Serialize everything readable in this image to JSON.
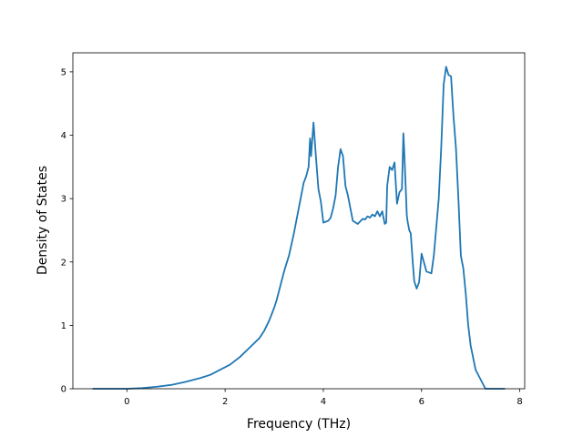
{
  "chart_data": {
    "type": "line",
    "title": "",
    "xlabel": "Frequency (THz)",
    "ylabel": "Density of States",
    "xlim": [
      -1.1,
      8.1
    ],
    "ylim": [
      0,
      5.3
    ],
    "grid": false,
    "x_ticks": [
      0,
      2,
      4,
      6,
      8
    ],
    "y_ticks": [
      0,
      1,
      2,
      3,
      4,
      5
    ],
    "x_tick_labels": [
      "0",
      "2",
      "4",
      "6",
      "8"
    ],
    "y_tick_labels": [
      "0",
      "1",
      "2",
      "3",
      "4",
      "5"
    ],
    "line_color": "#1f77b4",
    "series": [
      {
        "x": [
          -0.7,
          -0.4,
          0,
          0.3,
          0.6,
          0.9,
          1.2,
          1.5,
          1.7,
          1.9,
          2.1,
          2.3,
          2.5,
          2.7,
          2.8,
          2.9,
          3.0,
          3.05,
          3.1,
          3.2,
          3.3,
          3.4,
          3.5,
          3.6,
          3.65,
          3.7,
          3.73,
          3.75,
          3.8,
          3.85,
          3.9,
          3.95,
          4.0,
          4.1,
          4.15,
          4.2,
          4.25,
          4.3,
          4.35,
          4.4,
          4.45,
          4.5,
          4.6,
          4.7,
          4.8,
          4.85,
          4.9,
          4.95,
          5.0,
          5.05,
          5.1,
          5.15,
          5.2,
          5.25,
          5.28,
          5.3,
          5.35,
          5.4,
          5.45,
          5.5,
          5.55,
          5.6,
          5.63,
          5.65,
          5.7,
          5.72,
          5.75,
          5.78,
          5.82,
          5.85,
          5.9,
          5.95,
          6.0,
          6.1,
          6.2,
          6.25,
          6.3,
          6.35,
          6.4,
          6.45,
          6.5,
          6.55,
          6.6,
          6.65,
          6.7,
          6.75,
          6.8,
          6.85,
          6.9,
          6.95,
          7.0,
          7.1,
          7.3,
          7.7
        ],
        "y": [
          0,
          0,
          0,
          0.01,
          0.03,
          0.06,
          0.11,
          0.17,
          0.22,
          0.3,
          0.38,
          0.5,
          0.65,
          0.8,
          0.92,
          1.08,
          1.28,
          1.4,
          1.55,
          1.85,
          2.1,
          2.45,
          2.85,
          3.25,
          3.35,
          3.5,
          3.95,
          3.67,
          4.2,
          3.65,
          3.15,
          2.95,
          2.62,
          2.65,
          2.7,
          2.85,
          3.05,
          3.5,
          3.78,
          3.67,
          3.2,
          3.05,
          2.65,
          2.6,
          2.68,
          2.67,
          2.72,
          2.7,
          2.75,
          2.72,
          2.8,
          2.72,
          2.8,
          2.6,
          2.62,
          3.2,
          3.5,
          3.45,
          3.57,
          2.92,
          3.1,
          3.15,
          4.03,
          3.7,
          2.73,
          2.62,
          2.5,
          2.45,
          2.0,
          1.7,
          1.58,
          1.68,
          2.13,
          1.85,
          1.82,
          2.1,
          2.55,
          3.0,
          3.8,
          4.8,
          5.08,
          4.95,
          4.93,
          4.3,
          3.8,
          3.0,
          2.1,
          1.9,
          1.5,
          1.0,
          0.68,
          0.3,
          0.0,
          0.0
        ]
      }
    ]
  }
}
